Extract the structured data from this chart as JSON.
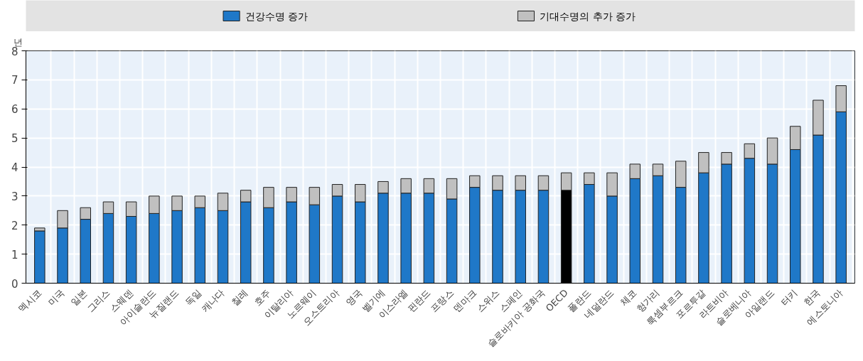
{
  "chart_data": {
    "type": "bar",
    "stacked": true,
    "ylabel": "년",
    "legend": "top",
    "grid": true,
    "categories": [
      "멕시코",
      "미국",
      "일본",
      "그리스",
      "스웨덴",
      "아이슬란드",
      "뉴질랜드",
      "독일",
      "캐나다",
      "칠레",
      "호주",
      "이탈리아",
      "노르웨이",
      "오스트리아",
      "영국",
      "벨기에",
      "이스라엘",
      "핀란드",
      "프랑스",
      "덴마크",
      "스위스",
      "스페인",
      "슬로바키아 공화국",
      "OECD",
      "폴란드",
      "네덜란드",
      "체코",
      "헝가리",
      "룩셈부르크",
      "포르투갈",
      "라트비아",
      "슬로베니아",
      "아일랜드",
      "터키",
      "한국",
      "에스토니아"
    ],
    "series": [
      {
        "name": "건강수명 증가",
        "color": "#1f78c8",
        "colors": [
          "#1f78c8",
          "#1f78c8",
          "#1f78c8",
          "#1f78c8",
          "#1f78c8",
          "#1f78c8",
          "#1f78c8",
          "#1f78c8",
          "#1f78c8",
          "#1f78c8",
          "#1f78c8",
          "#1f78c8",
          "#1f78c8",
          "#1f78c8",
          "#1f78c8",
          "#1f78c8",
          "#1f78c8",
          "#1f78c8",
          "#1f78c8",
          "#1f78c8",
          "#1f78c8",
          "#1f78c8",
          "#1f78c8",
          "#000000",
          "#1f78c8",
          "#1f78c8",
          "#1f78c8",
          "#1f78c8",
          "#1f78c8",
          "#1f78c8",
          "#1f78c8",
          "#1f78c8",
          "#1f78c8",
          "#1f78c8",
          "#1f78c8",
          "#1f78c8"
        ],
        "values": [
          1.8,
          1.9,
          2.2,
          2.4,
          2.3,
          2.4,
          2.5,
          2.6,
          2.5,
          2.8,
          2.6,
          2.8,
          2.7,
          3.0,
          2.8,
          3.1,
          3.1,
          3.1,
          2.9,
          3.3,
          3.2,
          3.2,
          3.2,
          3.2,
          3.4,
          3.0,
          3.6,
          3.7,
          3.3,
          3.8,
          4.1,
          4.3,
          4.1,
          4.6,
          5.1,
          5.9
        ]
      },
      {
        "name": "기대수명의 추가 증가",
        "color": "#c0c0c0",
        "values": [
          0.1,
          0.6,
          0.4,
          0.4,
          0.5,
          0.6,
          0.5,
          0.4,
          0.6,
          0.4,
          0.7,
          0.5,
          0.6,
          0.4,
          0.6,
          0.4,
          0.5,
          0.5,
          0.7,
          0.4,
          0.5,
          0.5,
          0.5,
          0.6,
          0.4,
          0.8,
          0.5,
          0.4,
          0.9,
          0.7,
          0.4,
          0.5,
          0.9,
          0.8,
          1.2,
          0.9
        ]
      }
    ],
    "ylim": [
      0,
      8
    ],
    "yticks": [
      0,
      1,
      2,
      3,
      4,
      5,
      6,
      7,
      8
    ]
  }
}
